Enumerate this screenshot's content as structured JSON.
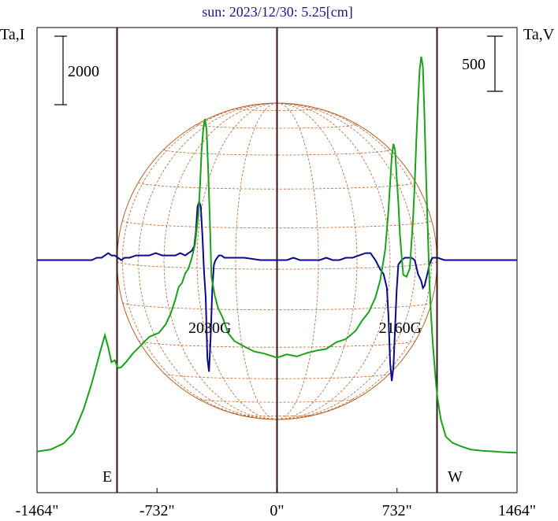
{
  "chart_data": {
    "type": "line",
    "title": "sun: 2023/12/30: 5.25[cm]",
    "ylabel_left": "Ta,I",
    "ylabel_right": "Ta,V",
    "scale_left_label": "2000",
    "scale_right_label": "500",
    "xlim": [
      -1464,
      1464
    ],
    "x_ticks": [
      {
        "value": -1464,
        "label": "-1464\""
      },
      {
        "value": -732,
        "label": "-732\""
      },
      {
        "value": 0,
        "label": "0\""
      },
      {
        "value": 732,
        "label": "732\""
      },
      {
        "value": 1464,
        "label": "1464\""
      }
    ],
    "limb_label_east": "E",
    "limb_label_west": "W",
    "limb_x": [
      -976,
      976
    ],
    "annotations": [
      {
        "text": "2030G",
        "x": -410
      },
      {
        "text": "2160G",
        "x": 752
      }
    ],
    "colors": {
      "intensity": "#1aa31a",
      "polarization": "#0a0a8c",
      "disk_grid": "#b5642e",
      "title": "#1a1a7a",
      "vertical_lines": "#3a1010"
    },
    "series": [
      {
        "key": "intensity",
        "x": [
          -1464,
          -1380,
          -1300,
          -1240,
          -1180,
          -1130,
          -1080,
          -1050,
          -1030,
          -1010,
          -990,
          -970,
          -950,
          -920,
          -880,
          -830,
          -780,
          -720,
          -680,
          -650,
          -620,
          -600,
          -580,
          -560,
          -540,
          -520,
          -500,
          -480,
          -470,
          -460,
          -450,
          -440,
          -430,
          -420,
          -410,
          -400,
          -380,
          -360,
          -330,
          -300,
          -260,
          -200,
          -140,
          -80,
          0,
          60,
          120,
          180,
          240,
          300,
          360,
          420,
          480,
          520,
          560,
          600,
          630,
          660,
          680,
          700,
          710,
          720,
          730,
          740,
          750,
          760,
          770,
          790,
          810,
          830,
          840,
          850,
          860,
          870,
          880,
          890,
          900,
          910,
          920,
          930,
          940,
          950,
          960,
          970,
          980,
          1000,
          1030,
          1070,
          1120,
          1180,
          1250,
          1330,
          1400,
          1464
        ],
        "y": [
          990,
          1040,
          1190,
          1440,
          2010,
          2640,
          3380,
          3790,
          3500,
          3140,
          3190,
          3000,
          3020,
          3150,
          3350,
          3550,
          3750,
          3850,
          4050,
          4300,
          4650,
          4950,
          5050,
          5280,
          5400,
          5650,
          5980,
          6700,
          7350,
          8250,
          8750,
          9000,
          8750,
          7800,
          6600,
          5200,
          4750,
          4450,
          4200,
          3850,
          3650,
          3520,
          3400,
          3350,
          3250,
          3330,
          3280,
          3360,
          3420,
          3460,
          3620,
          3700,
          3900,
          4150,
          4350,
          4700,
          5120,
          5850,
          6800,
          8100,
          8400,
          8250,
          7600,
          7000,
          6200,
          5700,
          5250,
          5200,
          5400,
          6600,
          7450,
          8500,
          9400,
          10200,
          10500,
          10250,
          9000,
          7500,
          6250,
          5050,
          4250,
          3600,
          3100,
          2600,
          2250,
          1750,
          1350,
          1200,
          1120,
          1040,
          1010,
          990,
          970,
          960
        ]
      },
      {
        "key": "polarization",
        "x": [
          -1464,
          -1130,
          -1100,
          -1070,
          -1050,
          -1030,
          -1010,
          -990,
          -970,
          -950,
          -930,
          -900,
          -860,
          -820,
          -780,
          -740,
          -700,
          -660,
          -620,
          -590,
          -560,
          -540,
          -520,
          -505,
          -495,
          -485,
          -475,
          -465,
          -455,
          -445,
          -435,
          -425,
          -415,
          -405,
          -395,
          -385,
          -375,
          -365,
          -355,
          -340,
          -320,
          -300,
          -250,
          -200,
          -100,
          0,
          60,
          100,
          140,
          180,
          220,
          260,
          300,
          340,
          380,
          420,
          460,
          500,
          540,
          570,
          600,
          630,
          650,
          660,
          670,
          680,
          690,
          700,
          710,
          720,
          730,
          740,
          760,
          780,
          800,
          820,
          840,
          860,
          880,
          890,
          900,
          910,
          920,
          930,
          940,
          950,
          960,
          980,
          1020,
          1100,
          1200,
          1300,
          1464
        ],
        "y": [
          0,
          0,
          10,
          10,
          20,
          30,
          20,
          20,
          10,
          0,
          10,
          10,
          20,
          20,
          20,
          30,
          20,
          20,
          20,
          30,
          20,
          30,
          40,
          60,
          120,
          230,
          250,
          230,
          100,
          -50,
          -160,
          -420,
          -480,
          -330,
          -130,
          -20,
          0,
          10,
          20,
          20,
          10,
          10,
          10,
          10,
          0,
          0,
          0,
          10,
          0,
          0,
          0,
          0,
          10,
          0,
          0,
          10,
          10,
          20,
          30,
          30,
          0,
          -40,
          -60,
          -90,
          -120,
          -240,
          -440,
          -520,
          -460,
          -290,
          -130,
          -20,
          0,
          10,
          10,
          10,
          0,
          -60,
          -90,
          -120,
          -110,
          -80,
          -50,
          -20,
          0,
          10,
          10,
          10,
          0,
          0,
          0,
          0,
          0
        ]
      }
    ],
    "ylim_intensity": [
      0,
      11200
    ],
    "ylim_polarization": [
      -1000,
      1000
    ]
  }
}
